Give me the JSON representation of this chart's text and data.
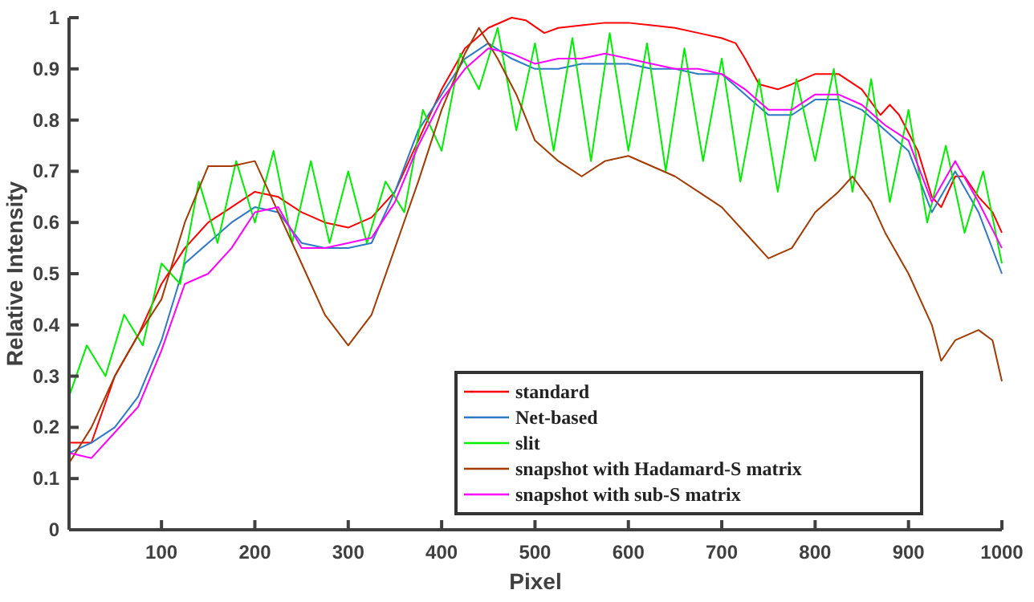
{
  "chart_data": {
    "type": "line",
    "xlabel": "Pixel",
    "ylabel": "Relative Intensity",
    "xlim": [
      1,
      1000
    ],
    "ylim": [
      0,
      1
    ],
    "xticks": [
      100,
      200,
      300,
      400,
      500,
      600,
      700,
      800,
      900,
      1000
    ],
    "yticks": [
      0,
      0.1,
      0.2,
      0.3,
      0.4,
      0.5,
      0.6,
      0.7,
      0.8,
      0.9,
      1
    ],
    "grid": false,
    "legend": "bottom right",
    "marker": "none",
    "line_style": "solid",
    "series": [
      {
        "name": "standard",
        "color": "#ff0000",
        "x": [
          1,
          25,
          50,
          75,
          100,
          125,
          150,
          175,
          200,
          225,
          250,
          275,
          300,
          325,
          350,
          375,
          400,
          425,
          450,
          475,
          490,
          510,
          525,
          550,
          575,
          600,
          625,
          650,
          675,
          700,
          715,
          725,
          740,
          760,
          775,
          800,
          825,
          850,
          870,
          880,
          890,
          910,
          925,
          935,
          950,
          960,
          975,
          990,
          1000
        ],
        "values": [
          0.17,
          0.17,
          0.3,
          0.38,
          0.48,
          0.55,
          0.6,
          0.63,
          0.66,
          0.65,
          0.62,
          0.6,
          0.59,
          0.61,
          0.66,
          0.76,
          0.86,
          0.94,
          0.98,
          1.0,
          0.995,
          0.97,
          0.98,
          0.985,
          0.99,
          0.99,
          0.985,
          0.98,
          0.97,
          0.96,
          0.95,
          0.92,
          0.87,
          0.86,
          0.87,
          0.89,
          0.89,
          0.86,
          0.81,
          0.83,
          0.81,
          0.74,
          0.65,
          0.63,
          0.69,
          0.69,
          0.65,
          0.62,
          0.58
        ]
      },
      {
        "name": "Net-based",
        "color": "#2e78c8",
        "x": [
          1,
          25,
          50,
          75,
          100,
          125,
          150,
          175,
          200,
          225,
          250,
          275,
          300,
          325,
          350,
          375,
          400,
          425,
          450,
          475,
          500,
          525,
          550,
          575,
          600,
          625,
          650,
          675,
          700,
          725,
          750,
          775,
          800,
          825,
          850,
          875,
          900,
          925,
          950,
          975,
          1000
        ],
        "values": [
          0.15,
          0.17,
          0.2,
          0.26,
          0.37,
          0.52,
          0.56,
          0.6,
          0.63,
          0.62,
          0.56,
          0.55,
          0.55,
          0.56,
          0.66,
          0.78,
          0.85,
          0.92,
          0.95,
          0.92,
          0.9,
          0.9,
          0.91,
          0.91,
          0.91,
          0.9,
          0.9,
          0.89,
          0.89,
          0.85,
          0.81,
          0.81,
          0.84,
          0.84,
          0.82,
          0.78,
          0.74,
          0.62,
          0.7,
          0.62,
          0.5
        ]
      },
      {
        "name": "slit",
        "color": "#00ee00",
        "x": [
          1,
          20,
          40,
          60,
          80,
          100,
          120,
          140,
          160,
          180,
          200,
          220,
          240,
          260,
          280,
          300,
          320,
          340,
          360,
          380,
          400,
          420,
          440,
          460,
          480,
          500,
          520,
          540,
          560,
          580,
          600,
          620,
          640,
          660,
          680,
          700,
          720,
          740,
          760,
          780,
          800,
          820,
          840,
          860,
          880,
          900,
          920,
          940,
          960,
          980,
          1000
        ],
        "values": [
          0.26,
          0.36,
          0.3,
          0.42,
          0.36,
          0.52,
          0.48,
          0.68,
          0.56,
          0.72,
          0.6,
          0.74,
          0.56,
          0.72,
          0.56,
          0.7,
          0.56,
          0.68,
          0.62,
          0.82,
          0.74,
          0.93,
          0.86,
          0.98,
          0.78,
          0.95,
          0.74,
          0.96,
          0.72,
          0.97,
          0.74,
          0.95,
          0.7,
          0.94,
          0.72,
          0.92,
          0.68,
          0.88,
          0.66,
          0.88,
          0.72,
          0.9,
          0.66,
          0.88,
          0.64,
          0.82,
          0.6,
          0.75,
          0.58,
          0.7,
          0.52
        ]
      },
      {
        "name": "snapshot with Hadamard-S matrix",
        "color": "#a33a00",
        "x": [
          1,
          25,
          50,
          75,
          100,
          125,
          150,
          175,
          200,
          225,
          250,
          275,
          300,
          325,
          350,
          375,
          400,
          425,
          440,
          460,
          480,
          500,
          525,
          550,
          575,
          600,
          625,
          650,
          675,
          700,
          725,
          750,
          775,
          800,
          825,
          840,
          860,
          875,
          900,
          925,
          935,
          950,
          975,
          990,
          1000
        ],
        "values": [
          0.13,
          0.2,
          0.3,
          0.38,
          0.45,
          0.6,
          0.71,
          0.71,
          0.72,
          0.62,
          0.52,
          0.42,
          0.36,
          0.42,
          0.55,
          0.68,
          0.82,
          0.93,
          0.98,
          0.92,
          0.85,
          0.76,
          0.72,
          0.69,
          0.72,
          0.73,
          0.71,
          0.69,
          0.66,
          0.63,
          0.58,
          0.53,
          0.55,
          0.62,
          0.66,
          0.69,
          0.64,
          0.58,
          0.5,
          0.4,
          0.33,
          0.37,
          0.39,
          0.37,
          0.29
        ]
      },
      {
        "name": "snapshot with sub-S matrix",
        "color": "#ff00ff",
        "x": [
          1,
          25,
          50,
          75,
          100,
          125,
          150,
          175,
          200,
          225,
          250,
          275,
          300,
          325,
          350,
          375,
          400,
          425,
          450,
          475,
          500,
          525,
          550,
          575,
          600,
          625,
          650,
          675,
          700,
          725,
          750,
          775,
          800,
          825,
          850,
          875,
          900,
          925,
          950,
          975,
          1000
        ],
        "values": [
          0.15,
          0.14,
          0.19,
          0.24,
          0.35,
          0.48,
          0.5,
          0.55,
          0.62,
          0.63,
          0.55,
          0.55,
          0.56,
          0.57,
          0.64,
          0.75,
          0.84,
          0.9,
          0.94,
          0.93,
          0.91,
          0.92,
          0.92,
          0.93,
          0.92,
          0.91,
          0.9,
          0.9,
          0.89,
          0.86,
          0.82,
          0.82,
          0.85,
          0.85,
          0.83,
          0.79,
          0.76,
          0.64,
          0.72,
          0.64,
          0.55
        ]
      }
    ]
  }
}
